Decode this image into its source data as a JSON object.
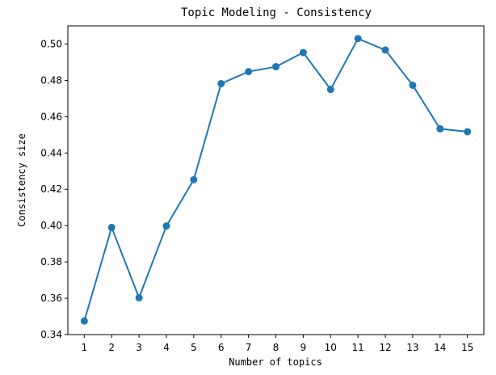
{
  "chart_data": {
    "type": "line",
    "title": "Topic Modeling - Consistency",
    "xlabel": "Number of topics",
    "ylabel": "Consistency size",
    "x": [
      1,
      2,
      3,
      4,
      5,
      6,
      7,
      8,
      9,
      10,
      11,
      12,
      13,
      14,
      15
    ],
    "series": [
      {
        "values": [
          0.3475,
          0.399,
          0.3603,
          0.3998,
          0.4253,
          0.4782,
          0.4848,
          0.4875,
          0.4953,
          0.475,
          0.503,
          0.4967,
          0.4773,
          0.4533,
          0.4517
        ]
      }
    ],
    "xlim": [
      0.4,
      15.6
    ],
    "ylim": [
      0.34,
      0.51
    ],
    "xticks": [
      "1",
      "2",
      "3",
      "4",
      "5",
      "6",
      "7",
      "8",
      "9",
      "10",
      "11",
      "12",
      "13",
      "14",
      "15"
    ],
    "yticks": [
      "0.34",
      "0.36",
      "0.38",
      "0.40",
      "0.42",
      "0.44",
      "0.46",
      "0.48",
      "0.50"
    ],
    "ytick_values": [
      0.34,
      0.36,
      0.38,
      0.4,
      0.42,
      0.44,
      0.46,
      0.48,
      0.5
    ],
    "grid": false,
    "legend": "none",
    "colors": {
      "line": "#1f77b4",
      "marker": "#1f77b4",
      "axes": "#000000"
    }
  }
}
